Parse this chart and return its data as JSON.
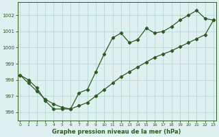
{
  "x": [
    0,
    1,
    2,
    3,
    4,
    5,
    6,
    7,
    8,
    9,
    10,
    11,
    12,
    13,
    14,
    15,
    16,
    17,
    18,
    19,
    20,
    21,
    22,
    23
  ],
  "jagged": [
    998.3,
    998.0,
    997.5,
    996.7,
    996.2,
    996.2,
    996.2,
    997.2,
    997.4,
    998.5,
    999.6,
    1000.6,
    1000.9,
    1000.3,
    1000.5,
    1001.2,
    1000.9,
    1001.0,
    1001.3,
    1001.7,
    1002.0,
    1002.3,
    1001.8,
    1001.7
  ],
  "trend": [
    998.3,
    997.8,
    997.3,
    996.8,
    996.5,
    996.3,
    996.2,
    996.4,
    996.6,
    997.0,
    997.4,
    997.8,
    998.2,
    998.5,
    998.8,
    999.1,
    999.4,
    999.6,
    999.8,
    1000.05,
    1000.3,
    1000.55,
    1000.8,
    1001.7
  ],
  "background_color": "#dff0f0",
  "grid_color": "#b8d8d8",
  "line_color": "#2d5a1e",
  "ylim": [
    995.5,
    1002.8
  ],
  "xlim": [
    -0.3,
    23.3
  ],
  "xlabel": "Graphe pression niveau de la mer (hPa)",
  "yticks": [
    996,
    997,
    998,
    999,
    1000,
    1001,
    1002
  ],
  "xticks": [
    0,
    1,
    2,
    3,
    4,
    5,
    6,
    7,
    8,
    9,
    10,
    11,
    12,
    13,
    14,
    15,
    16,
    17,
    18,
    19,
    20,
    21,
    22,
    23
  ]
}
